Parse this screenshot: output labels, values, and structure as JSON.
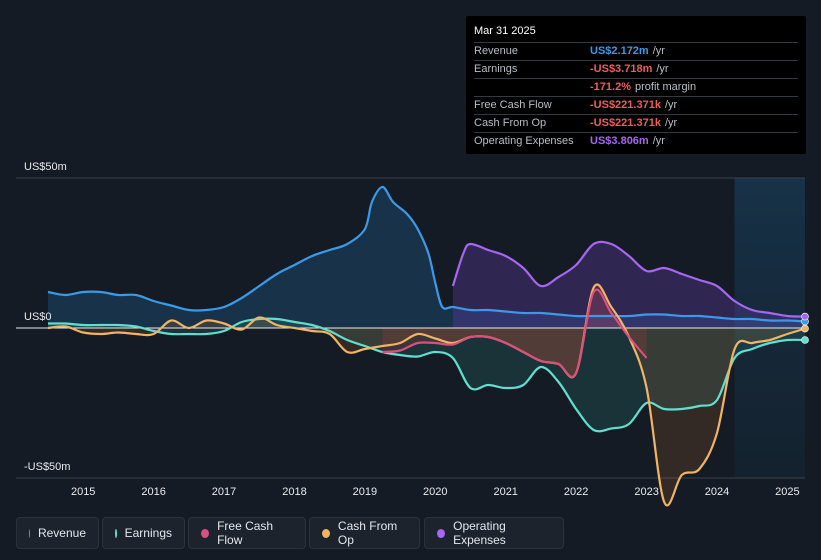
{
  "tooltip": {
    "date": "Mar 31 2025",
    "rows": [
      {
        "label": "Revenue",
        "value": "US$2.172m",
        "unit": "/yr",
        "color": "#3b9ae8"
      },
      {
        "label": "Earnings",
        "value": "-US$3.718m",
        "unit": "/yr",
        "color": "#f05d5d"
      },
      {
        "label": "",
        "value": "-171.2%",
        "unit": "profit margin",
        "color": "#f05d5d"
      },
      {
        "label": "Free Cash Flow",
        "value": "-US$221.371k",
        "unit": "/yr",
        "color": "#f05d5d"
      },
      {
        "label": "Cash From Op",
        "value": "-US$221.371k",
        "unit": "/yr",
        "color": "#f05d5d"
      },
      {
        "label": "Operating Expenses",
        "value": "US$3.806m",
        "unit": "/yr",
        "color": "#a567f0"
      }
    ]
  },
  "legend": [
    {
      "label": "Revenue",
      "color": "#3b9ae8"
    },
    {
      "label": "Earnings",
      "color": "#5fe0cf"
    },
    {
      "label": "Free Cash Flow",
      "color": "#d9507e"
    },
    {
      "label": "Cash From Op",
      "color": "#f0b465"
    },
    {
      "label": "Operating Expenses",
      "color": "#a567f0"
    }
  ],
  "chart_data": {
    "type": "area",
    "ylim": [
      -50,
      50
    ],
    "y_tick_labels": [
      "US$50m",
      "US$0",
      "-US$50m"
    ],
    "x_tick_labels": [
      "2015",
      "2016",
      "2017",
      "2018",
      "2019",
      "2020",
      "2021",
      "2022",
      "2023",
      "2024",
      "2025"
    ],
    "xlim": [
      2014.5,
      2025.25
    ],
    "forecast_shade_start": 2024.25,
    "series": [
      {
        "name": "Revenue",
        "color": "#3b9ae8",
        "fill": true,
        "x": [
          2014.5,
          2014.75,
          2015.0,
          2015.25,
          2015.5,
          2015.75,
          2016.0,
          2016.25,
          2016.5,
          2016.75,
          2017.0,
          2017.25,
          2017.5,
          2017.75,
          2018.0,
          2018.25,
          2018.5,
          2018.75,
          2019.0,
          2019.1,
          2019.25,
          2019.4,
          2019.6,
          2019.75,
          2019.9,
          2020.0,
          2020.1,
          2020.25,
          2020.5,
          2020.75,
          2021.0,
          2021.25,
          2021.5,
          2021.75,
          2022.0,
          2022.25,
          2022.5,
          2022.75,
          2023.0,
          2023.25,
          2023.5,
          2023.75,
          2024.0,
          2024.25,
          2024.5,
          2024.75,
          2025.0,
          2025.25
        ],
        "y": [
          12,
          11,
          12,
          12,
          11,
          11,
          9,
          7.5,
          6,
          6,
          7,
          10,
          14,
          18,
          21,
          24,
          26,
          28,
          33,
          42,
          47,
          42,
          38,
          33,
          25,
          15,
          7,
          7,
          6,
          6,
          5.5,
          5,
          5,
          4.5,
          4,
          4,
          4,
          4,
          4.5,
          4.5,
          4,
          4,
          3.5,
          3,
          3,
          2.5,
          2.5,
          2.2
        ]
      },
      {
        "name": "Earnings",
        "color": "#5fe0cf",
        "fill": true,
        "x": [
          2014.5,
          2014.75,
          2015.0,
          2015.25,
          2015.5,
          2015.75,
          2016.0,
          2016.25,
          2016.5,
          2016.75,
          2017.0,
          2017.25,
          2017.5,
          2017.75,
          2018.0,
          2018.25,
          2018.5,
          2018.75,
          2019.0,
          2019.25,
          2019.5,
          2019.75,
          2020.0,
          2020.25,
          2020.5,
          2020.75,
          2021.0,
          2021.25,
          2021.5,
          2021.75,
          2022.0,
          2022.25,
          2022.5,
          2022.75,
          2023.0,
          2023.25,
          2023.5,
          2023.75,
          2024.0,
          2024.25,
          2024.5,
          2024.75,
          2025.0,
          2025.25
        ],
        "y": [
          1.5,
          1.5,
          1,
          1,
          1,
          0.5,
          -1,
          -2,
          -2,
          -2,
          -1,
          2,
          3,
          3,
          2,
          1,
          -1,
          -4,
          -6,
          -8,
          -9,
          -9.5,
          -8,
          -10,
          -20,
          -19,
          -20,
          -19,
          -13,
          -18,
          -27,
          -34,
          -33.5,
          -32,
          -25,
          -27,
          -27,
          -26,
          -24,
          -10,
          -7,
          -5,
          -4,
          -4
        ]
      },
      {
        "name": "Cash From Op",
        "color": "#f0b465",
        "fill": true,
        "x": [
          2014.5,
          2014.75,
          2015.0,
          2015.25,
          2015.5,
          2015.75,
          2016.0,
          2016.25,
          2016.5,
          2016.75,
          2017.0,
          2017.25,
          2017.5,
          2017.75,
          2018.0,
          2018.25,
          2018.5,
          2018.75,
          2019.0,
          2019.25,
          2019.5,
          2019.75,
          2020.0,
          2020.25,
          2020.5,
          2020.75,
          2021.0,
          2021.25,
          2021.5,
          2021.75,
          2022.0,
          2022.25,
          2022.5,
          2022.75,
          2023.0,
          2023.25,
          2023.5,
          2023.75,
          2024.0,
          2024.25,
          2024.5,
          2024.75,
          2025.0,
          2025.25
        ],
        "y": [
          0,
          0.5,
          -1.5,
          -2,
          -1.5,
          -2,
          -2,
          2.5,
          0,
          2.5,
          1.5,
          -0.5,
          3.5,
          1,
          0,
          -1,
          -2,
          -8,
          -7,
          -6,
          -5,
          -2,
          -3.5,
          -5,
          -3,
          -3,
          -5,
          -8,
          -11,
          -12,
          -15,
          13.5,
          7,
          -3,
          -20,
          -58,
          -49,
          -47,
          -35,
          -7,
          -5,
          -4,
          -2,
          -0.2
        ]
      },
      {
        "name": "Free Cash Flow",
        "color": "#d9507e",
        "fill": true,
        "x": [
          2019.25,
          2019.5,
          2019.75,
          2020.0,
          2020.25,
          2020.5,
          2020.75,
          2021.0,
          2021.25,
          2021.5,
          2021.75,
          2022.0,
          2022.25,
          2022.5,
          2022.75,
          2023.0
        ],
        "y": [
          -8,
          -7.5,
          -5,
          -5,
          -5.5,
          -3,
          -3,
          -5,
          -8,
          -11,
          -12,
          -15,
          12,
          5,
          -3,
          -10
        ]
      },
      {
        "name": "Operating Expenses",
        "color": "#a567f0",
        "fill": true,
        "x": [
          2020.25,
          2020.4,
          2020.5,
          2020.75,
          2021.0,
          2021.25,
          2021.5,
          2021.75,
          2022.0,
          2022.25,
          2022.5,
          2022.75,
          2023.0,
          2023.25,
          2023.5,
          2023.75,
          2024.0,
          2024.25,
          2024.5,
          2024.75,
          2025.0,
          2025.25
        ],
        "y": [
          14,
          25,
          28,
          26,
          24,
          20,
          14,
          17,
          21,
          28,
          28,
          24,
          19,
          20,
          18,
          16,
          14,
          9,
          6,
          5,
          4,
          3.8
        ]
      }
    ]
  }
}
